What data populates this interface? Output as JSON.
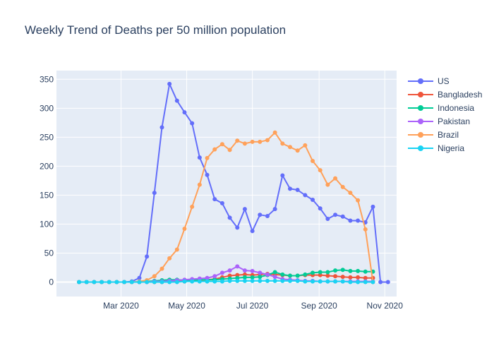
{
  "chart_data": {
    "type": "line",
    "title": "Weekly Trend of Deaths per 50 million population",
    "xlabel": "",
    "ylabel": "",
    "x_axis": {
      "type": "date",
      "range": [
        "2020-01-01",
        "2020-11-12"
      ],
      "tick_dates": [
        "2020-03-01",
        "2020-05-01",
        "2020-07-01",
        "2020-09-01",
        "2020-11-01"
      ],
      "tick_labels": [
        "Mar 2020",
        "May 2020",
        "Jul 2020",
        "Sep 2020",
        "Nov 2020"
      ]
    },
    "y_axis": {
      "range": [
        -25,
        365
      ],
      "ticks": [
        0,
        50,
        100,
        150,
        200,
        250,
        300,
        350
      ]
    },
    "grid": true,
    "legend_position": "right",
    "series": [
      {
        "name": "US",
        "color": "#636efa",
        "x": [
          "2020-01-22",
          "2020-01-29",
          "2020-02-05",
          "2020-02-12",
          "2020-02-19",
          "2020-02-26",
          "2020-03-04",
          "2020-03-11",
          "2020-03-18",
          "2020-03-25",
          "2020-04-01",
          "2020-04-08",
          "2020-04-15",
          "2020-04-22",
          "2020-04-29",
          "2020-05-06",
          "2020-05-13",
          "2020-05-20",
          "2020-05-27",
          "2020-06-03",
          "2020-06-10",
          "2020-06-17",
          "2020-06-24",
          "2020-07-01",
          "2020-07-08",
          "2020-07-15",
          "2020-07-22",
          "2020-07-29",
          "2020-08-05",
          "2020-08-12",
          "2020-08-19",
          "2020-08-26",
          "2020-09-02",
          "2020-09-09",
          "2020-09-16",
          "2020-09-23",
          "2020-09-30",
          "2020-10-07",
          "2020-10-14",
          "2020-10-21",
          "2020-10-28",
          "2020-11-04"
        ],
        "values": [
          0,
          0,
          0,
          0,
          0,
          0,
          0,
          1,
          7,
          44,
          154,
          267,
          342,
          313,
          293,
          274,
          215,
          185,
          143,
          136,
          111,
          94,
          126,
          88,
          116,
          114,
          126,
          184,
          161,
          159,
          150,
          142,
          127,
          109,
          116,
          113,
          106,
          106,
          103,
          130,
          0,
          0
        ]
      },
      {
        "name": "Bangladesh",
        "color": "#ef553b",
        "x": [
          "2020-01-22",
          "2020-01-29",
          "2020-02-05",
          "2020-02-12",
          "2020-02-19",
          "2020-02-26",
          "2020-03-04",
          "2020-03-11",
          "2020-03-18",
          "2020-03-25",
          "2020-04-01",
          "2020-04-08",
          "2020-04-15",
          "2020-04-22",
          "2020-04-29",
          "2020-05-06",
          "2020-05-13",
          "2020-05-20",
          "2020-05-27",
          "2020-06-03",
          "2020-06-10",
          "2020-06-17",
          "2020-06-24",
          "2020-07-01",
          "2020-07-08",
          "2020-07-15",
          "2020-07-22",
          "2020-07-29",
          "2020-08-05",
          "2020-08-12",
          "2020-08-19",
          "2020-08-26",
          "2020-09-02",
          "2020-09-09",
          "2020-09-16",
          "2020-09-23",
          "2020-09-30",
          "2020-10-07",
          "2020-10-14",
          "2020-10-21"
        ],
        "values": [
          0,
          0,
          0,
          0,
          0,
          0,
          0,
          0,
          0,
          0,
          0,
          0,
          1,
          1,
          1,
          2,
          3,
          4,
          5,
          8,
          11,
          12,
          13,
          12,
          13,
          14,
          13,
          12,
          11,
          11,
          12,
          12,
          12,
          11,
          10,
          9,
          8,
          8,
          7,
          7
        ]
      },
      {
        "name": "Indonesia",
        "color": "#00cc96",
        "x": [
          "2020-01-22",
          "2020-01-29",
          "2020-02-05",
          "2020-02-12",
          "2020-02-19",
          "2020-02-26",
          "2020-03-04",
          "2020-03-11",
          "2020-03-18",
          "2020-03-25",
          "2020-04-01",
          "2020-04-08",
          "2020-04-15",
          "2020-04-22",
          "2020-04-29",
          "2020-05-06",
          "2020-05-13",
          "2020-05-20",
          "2020-05-27",
          "2020-06-03",
          "2020-06-10",
          "2020-06-17",
          "2020-06-24",
          "2020-07-01",
          "2020-07-08",
          "2020-07-15",
          "2020-07-22",
          "2020-07-29",
          "2020-08-05",
          "2020-08-12",
          "2020-08-19",
          "2020-08-26",
          "2020-09-02",
          "2020-09-09",
          "2020-09-16",
          "2020-09-23",
          "2020-09-30",
          "2020-10-07",
          "2020-10-14",
          "2020-10-21"
        ],
        "values": [
          0,
          0,
          0,
          0,
          0,
          0,
          0,
          0,
          0,
          1,
          2,
          3,
          4,
          4,
          3,
          3,
          4,
          4,
          4,
          5,
          6,
          7,
          8,
          8,
          9,
          12,
          17,
          13,
          11,
          11,
          13,
          16,
          17,
          17,
          20,
          21,
          19,
          19,
          18,
          18
        ]
      },
      {
        "name": "Pakistan",
        "color": "#ab63fa",
        "x": [
          "2020-01-22",
          "2020-01-29",
          "2020-02-05",
          "2020-02-12",
          "2020-02-19",
          "2020-02-26",
          "2020-03-04",
          "2020-03-11",
          "2020-03-18",
          "2020-03-25",
          "2020-04-01",
          "2020-04-08",
          "2020-04-15",
          "2020-04-22",
          "2020-04-29",
          "2020-05-06",
          "2020-05-13",
          "2020-05-20",
          "2020-05-27",
          "2020-06-03",
          "2020-06-10",
          "2020-06-17",
          "2020-06-24",
          "2020-07-01",
          "2020-07-08",
          "2020-07-15",
          "2020-07-22",
          "2020-07-29",
          "2020-08-05",
          "2020-08-12",
          "2020-08-19",
          "2020-08-26",
          "2020-09-02",
          "2020-09-09",
          "2020-09-16",
          "2020-09-23",
          "2020-09-30",
          "2020-10-07",
          "2020-10-14",
          "2020-10-21"
        ],
        "values": [
          0,
          0,
          0,
          0,
          0,
          0,
          0,
          0,
          0,
          0,
          1,
          1,
          2,
          3,
          4,
          5,
          6,
          7,
          10,
          16,
          20,
          27,
          20,
          19,
          16,
          13,
          9,
          5,
          4,
          3,
          2,
          2,
          1,
          1,
          1,
          1,
          1,
          1,
          1,
          1
        ]
      },
      {
        "name": "Brazil",
        "color": "#ffa15a",
        "x": [
          "2020-01-22",
          "2020-01-29",
          "2020-02-05",
          "2020-02-12",
          "2020-02-19",
          "2020-02-26",
          "2020-03-04",
          "2020-03-11",
          "2020-03-18",
          "2020-03-25",
          "2020-04-01",
          "2020-04-08",
          "2020-04-15",
          "2020-04-22",
          "2020-04-29",
          "2020-05-06",
          "2020-05-13",
          "2020-05-20",
          "2020-05-27",
          "2020-06-03",
          "2020-06-10",
          "2020-06-17",
          "2020-06-24",
          "2020-07-01",
          "2020-07-08",
          "2020-07-15",
          "2020-07-22",
          "2020-07-29",
          "2020-08-05",
          "2020-08-12",
          "2020-08-19",
          "2020-08-26",
          "2020-09-02",
          "2020-09-09",
          "2020-09-16",
          "2020-09-23",
          "2020-09-30",
          "2020-10-07",
          "2020-10-14",
          "2020-10-21"
        ],
        "values": [
          0,
          0,
          0,
          0,
          0,
          0,
          0,
          0,
          1,
          3,
          10,
          23,
          41,
          56,
          92,
          130,
          168,
          214,
          229,
          238,
          228,
          244,
          239,
          242,
          242,
          245,
          258,
          239,
          233,
          227,
          236,
          209,
          193,
          168,
          179,
          164,
          154,
          141,
          91,
          0
        ]
      },
      {
        "name": "Nigeria",
        "color": "#19d3f3",
        "x": [
          "2020-01-22",
          "2020-01-29",
          "2020-02-05",
          "2020-02-12",
          "2020-02-19",
          "2020-02-26",
          "2020-03-04",
          "2020-03-11",
          "2020-03-18",
          "2020-03-25",
          "2020-04-01",
          "2020-04-08",
          "2020-04-15",
          "2020-04-22",
          "2020-04-29",
          "2020-05-06",
          "2020-05-13",
          "2020-05-20",
          "2020-05-27",
          "2020-06-03",
          "2020-06-10",
          "2020-06-17",
          "2020-06-24",
          "2020-07-01",
          "2020-07-08",
          "2020-07-15",
          "2020-07-22",
          "2020-07-29",
          "2020-08-05",
          "2020-08-12",
          "2020-08-19",
          "2020-08-26",
          "2020-09-02",
          "2020-09-09",
          "2020-09-16",
          "2020-09-23",
          "2020-09-30",
          "2020-10-07",
          "2020-10-14",
          "2020-10-21"
        ],
        "values": [
          0,
          0,
          0,
          0,
          0,
          0,
          0,
          0,
          0,
          0,
          0,
          0,
          0,
          0,
          1,
          1,
          1,
          1,
          1,
          1,
          2,
          2,
          2,
          2,
          2,
          2,
          2,
          2,
          2,
          2,
          1,
          1,
          1,
          1,
          1,
          1,
          0,
          0,
          0,
          0
        ]
      }
    ]
  }
}
